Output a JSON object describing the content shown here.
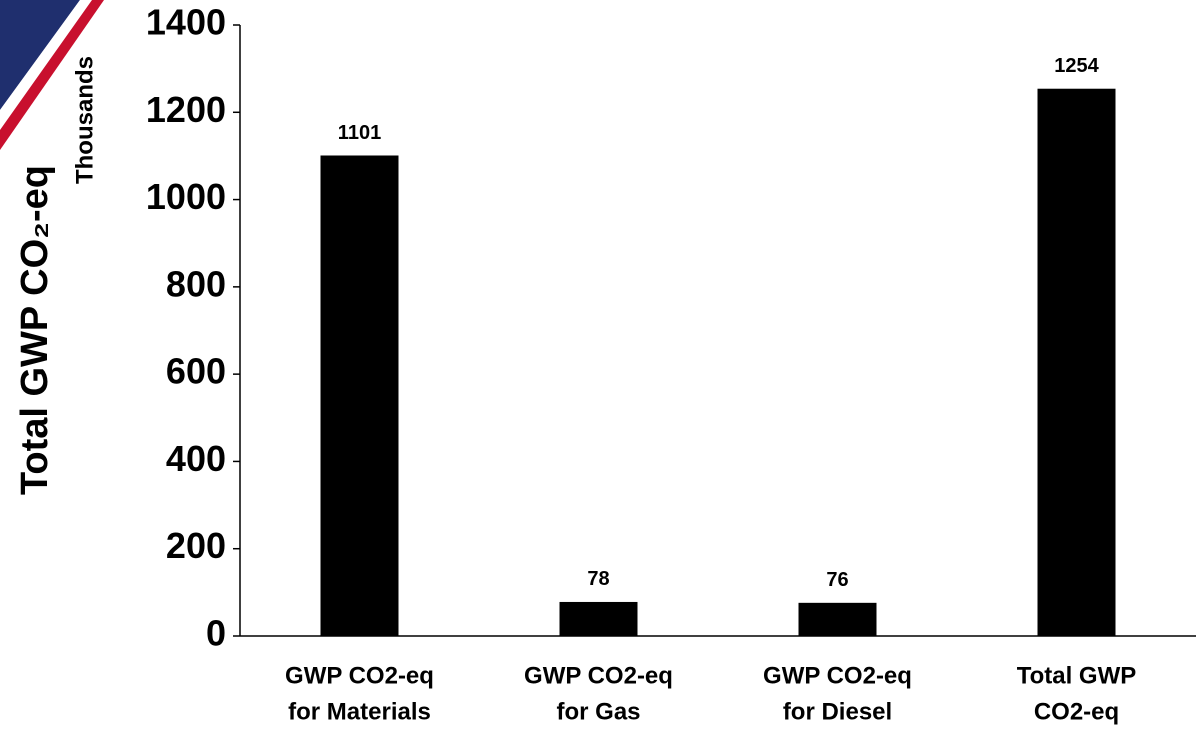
{
  "chart_data": {
    "type": "bar",
    "y_label": "Total GWP CO₂-eq",
    "y_units": "Thousands",
    "categories": [
      [
        "GWP CO2-eq",
        "for Materials"
      ],
      [
        "GWP CO2-eq",
        "for Gas"
      ],
      [
        "GWP CO2-eq",
        "for Diesel"
      ],
      [
        "Total GWP",
        "CO2-eq"
      ]
    ],
    "values": [
      1101,
      78,
      76,
      1254
    ],
    "color": "#000000",
    "ylim": [
      0,
      1400
    ],
    "yticks": [
      0,
      200,
      400,
      600,
      800,
      1000,
      1200,
      1400
    ],
    "grid": false
  }
}
